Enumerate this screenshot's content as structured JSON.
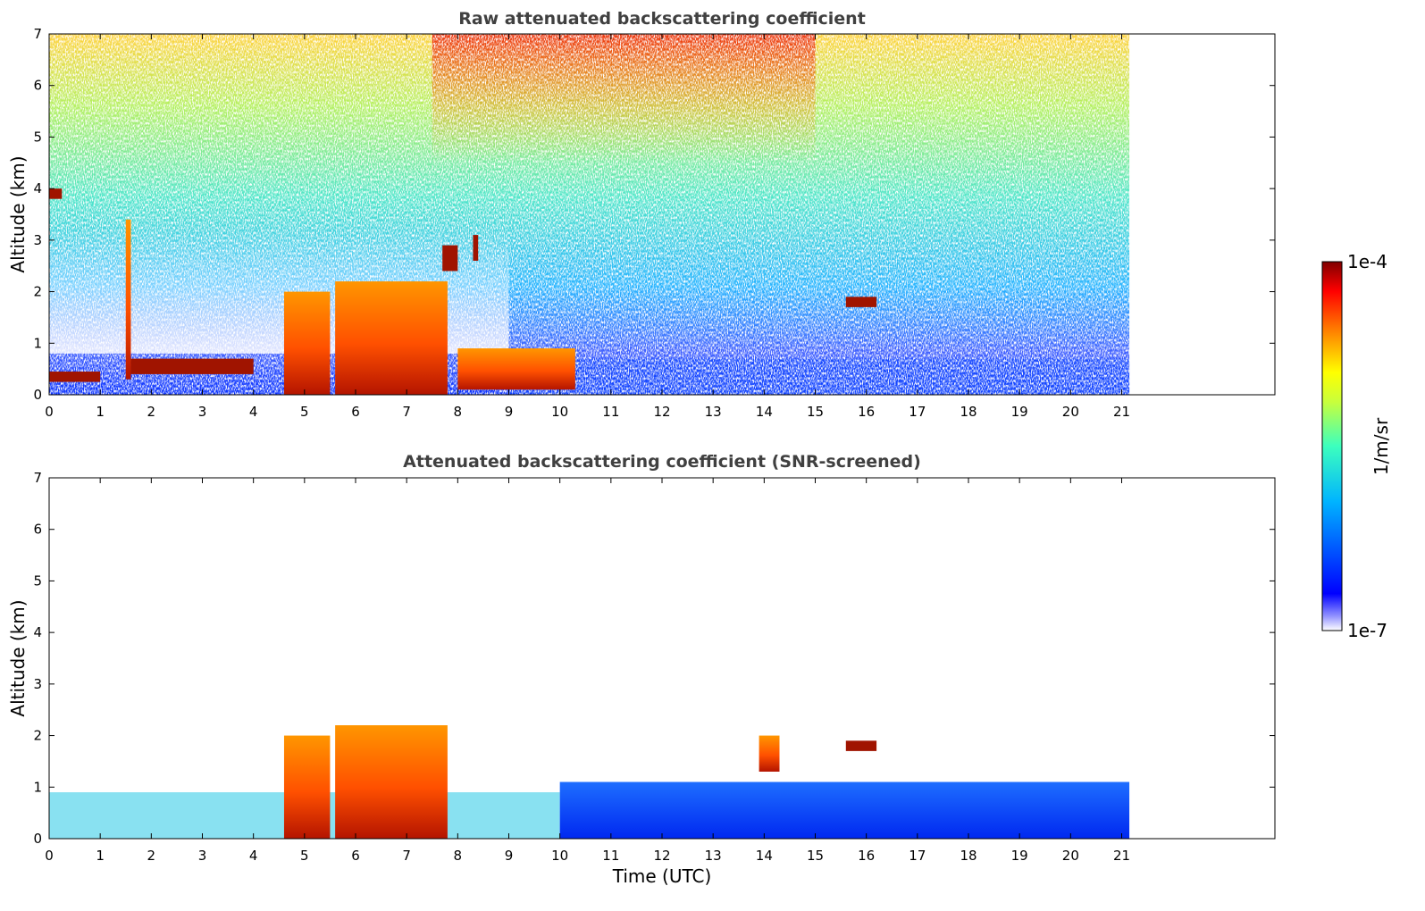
{
  "chart_data": [
    {
      "type": "heatmap",
      "title": "Raw attenuated backscattering coefficient",
      "xlabel": "",
      "ylabel": "Altitude (km)",
      "xlim": [
        0,
        24
      ],
      "ylim": [
        0,
        7
      ],
      "xticks": [
        "0",
        "1",
        "2",
        "3",
        "4",
        "5",
        "6",
        "7",
        "8",
        "9",
        "10",
        "11",
        "12",
        "13",
        "14",
        "15",
        "16",
        "17",
        "18",
        "19",
        "20",
        "21"
      ],
      "yticks": [
        "0",
        "1",
        "2",
        "3",
        "4",
        "5",
        "6",
        "7"
      ],
      "data_extent_x": [
        0,
        21.15
      ],
      "screened": false,
      "features": [
        {
          "kind": "cloud",
          "x": [
            0.0,
            1.0
          ],
          "y": [
            0.25,
            0.45
          ]
        },
        {
          "kind": "cloud",
          "x": [
            1.5,
            1.6
          ],
          "y": [
            0.3,
            3.4
          ]
        },
        {
          "kind": "cloud",
          "x": [
            1.6,
            4.0
          ],
          "y": [
            0.4,
            0.7
          ]
        },
        {
          "kind": "cloud",
          "x": [
            4.6,
            5.5
          ],
          "y": [
            0.0,
            2.0
          ]
        },
        {
          "kind": "cloud",
          "x": [
            5.6,
            7.8
          ],
          "y": [
            0.0,
            2.2
          ]
        },
        {
          "kind": "cloud",
          "x": [
            7.7,
            8.0
          ],
          "y": [
            2.4,
            2.9
          ]
        },
        {
          "kind": "cloud",
          "x": [
            8.3,
            8.4
          ],
          "y": [
            2.6,
            3.1
          ]
        },
        {
          "kind": "cloud",
          "x": [
            8.0,
            10.3
          ],
          "y": [
            0.1,
            0.9
          ]
        },
        {
          "kind": "cloud",
          "x": [
            15.6,
            16.2
          ],
          "y": [
            1.7,
            1.9
          ]
        },
        {
          "kind": "cloud",
          "x": [
            0.0,
            0.25
          ],
          "y": [
            3.8,
            4.0
          ]
        }
      ]
    },
    {
      "type": "heatmap",
      "title": "Attenuated backscattering coefficient (SNR-screened)",
      "xlabel": "Time (UTC)",
      "ylabel": "Altitude (km)",
      "xlim": [
        0,
        24
      ],
      "ylim": [
        0,
        7
      ],
      "xticks": [
        "0",
        "1",
        "2",
        "3",
        "4",
        "5",
        "6",
        "7",
        "8",
        "9",
        "10",
        "11",
        "12",
        "13",
        "14",
        "15",
        "16",
        "17",
        "18",
        "19",
        "20",
        "21"
      ],
      "yticks": [
        "0",
        "1",
        "2",
        "3",
        "4",
        "5",
        "6",
        "7"
      ],
      "data_extent_x": [
        0,
        21.15
      ],
      "screened": true,
      "features": [
        {
          "kind": "boundary-layer",
          "x": [
            10.0,
            21.15
          ],
          "y": [
            0.0,
            1.1
          ]
        },
        {
          "kind": "cloud",
          "x": [
            4.6,
            5.5
          ],
          "y": [
            0.0,
            2.0
          ]
        },
        {
          "kind": "cloud",
          "x": [
            5.6,
            7.8
          ],
          "y": [
            0.0,
            2.2
          ]
        },
        {
          "kind": "cloud",
          "x": [
            13.9,
            14.3
          ],
          "y": [
            1.3,
            2.0
          ]
        },
        {
          "kind": "cloud",
          "x": [
            15.6,
            16.2
          ],
          "y": [
            1.7,
            1.9
          ]
        }
      ]
    }
  ],
  "colorbar": {
    "label": "1/m/sr",
    "min_label": "1e-7",
    "max_label": "1e-4",
    "scale": "log",
    "colormap": [
      "#ffffff",
      "#0000ff",
      "#00b4ff",
      "#3cffbe",
      "#ffff00",
      "#ff7800",
      "#ff0000",
      "#800000"
    ]
  }
}
